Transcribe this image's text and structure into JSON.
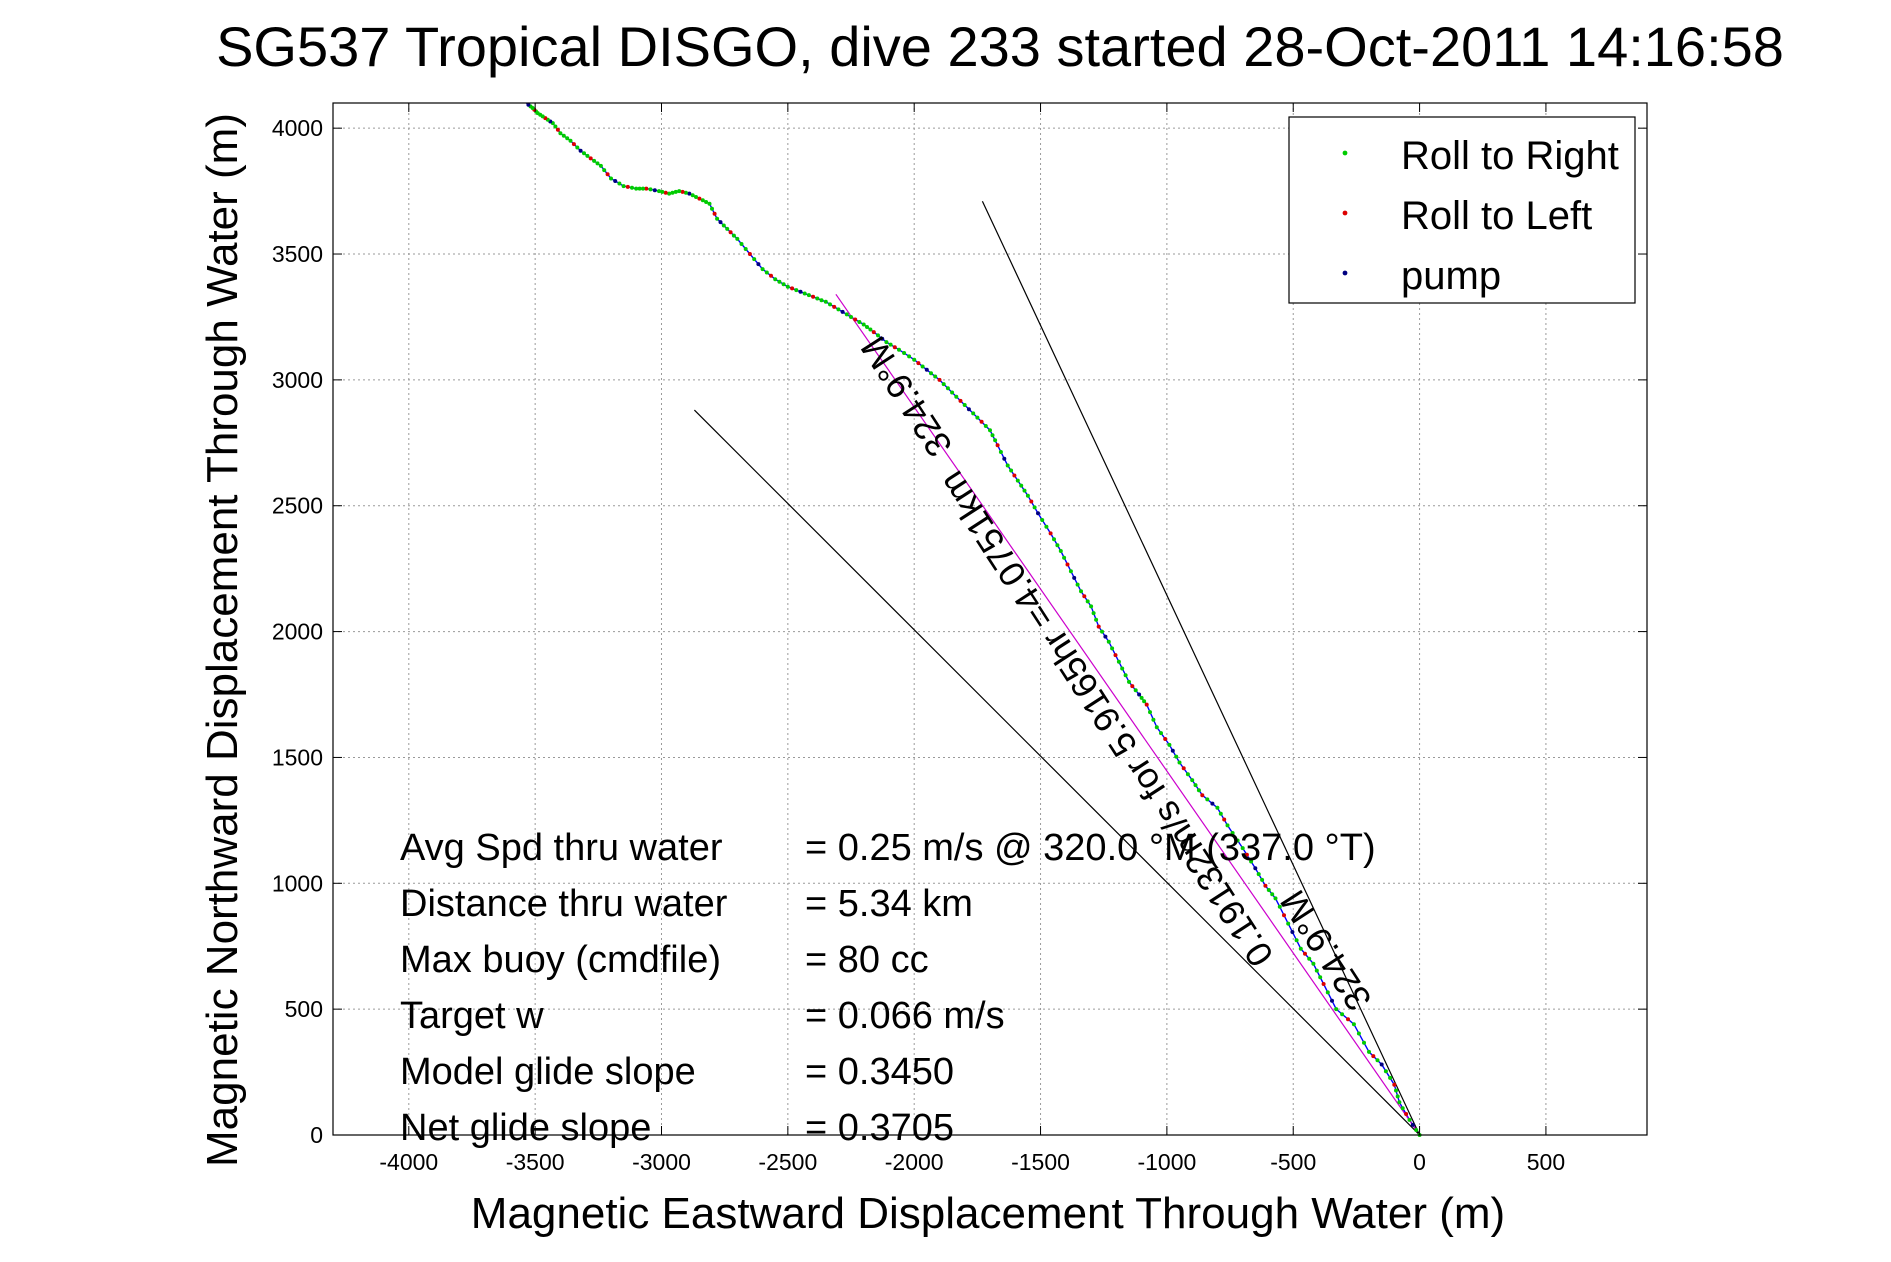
{
  "chart_data": {
    "type": "line",
    "title": "SG537 Tropical DISGO, dive 233 started 28-Oct-2011 14:16:58",
    "xlabel": "Magnetic Eastward Displacement Through Water (m)",
    "ylabel": "Magnetic Northward Displacement Through Water (m)",
    "xlim": [
      -4300,
      900
    ],
    "ylim": [
      0,
      4100
    ],
    "xticks": [
      -4000,
      -3500,
      -3000,
      -2500,
      -2000,
      -1500,
      -1000,
      -500,
      0,
      500
    ],
    "yticks": [
      0,
      500,
      1000,
      1500,
      2000,
      2500,
      3000,
      3500,
      4000
    ],
    "grid": true,
    "legend": {
      "position": "top-right",
      "entries": [
        {
          "label": "Roll to Right",
          "color": "#00cc00"
        },
        {
          "label": "Roll to Left",
          "color": "#dd0000"
        },
        {
          "label": "pump",
          "color": "#000080"
        }
      ]
    },
    "series": [
      {
        "color": "#0000ff",
        "x": [
          0,
          -40,
          -80,
          -100,
          -150,
          -200,
          -260,
          -330,
          -380,
          -420,
          -470,
          -520,
          -570,
          -610,
          -650,
          -700,
          -760,
          -800,
          -860,
          -900,
          -950,
          -990,
          -1040,
          -1080,
          -1110,
          -1150,
          -1190,
          -1230,
          -1270,
          -1300,
          -1340,
          -1380,
          -1420,
          -1460,
          -1510,
          -1550,
          -1590,
          -1630,
          -1670,
          -1700,
          -1750,
          -1800,
          -1850,
          -1900,
          -1950,
          -2000,
          -2060,
          -2110,
          -2160,
          -2200,
          -2250,
          -2300,
          -2350,
          -2400,
          -2450,
          -2500,
          -2550,
          -2600,
          -2650,
          -2700,
          -2740,
          -2780,
          -2810,
          -2850,
          -2890,
          -2930,
          -2970,
          -3010,
          -3060,
          -3100,
          -3150,
          -3200,
          -3240,
          -3280,
          -3320,
          -3360,
          -3400,
          -3430,
          -3460,
          -3490,
          -3510,
          -3535
        ],
        "y": [
          0,
          60,
          130,
          200,
          280,
          330,
          440,
          500,
          600,
          680,
          740,
          840,
          940,
          990,
          1060,
          1140,
          1230,
          1300,
          1350,
          1410,
          1480,
          1550,
          1620,
          1710,
          1750,
          1800,
          1880,
          1960,
          2020,
          2100,
          2160,
          2240,
          2320,
          2390,
          2470,
          2540,
          2600,
          2660,
          2740,
          2800,
          2850,
          2900,
          2950,
          3000,
          3040,
          3080,
          3120,
          3150,
          3190,
          3220,
          3250,
          3280,
          3310,
          3330,
          3350,
          3370,
          3400,
          3440,
          3500,
          3560,
          3600,
          3640,
          3700,
          3720,
          3740,
          3750,
          3740,
          3750,
          3760,
          3760,
          3770,
          3800,
          3850,
          3880,
          3910,
          3950,
          3980,
          4020,
          4040,
          4060,
          4080,
          4100
        ]
      },
      {
        "color": "#cc00cc",
        "x": [
          0,
          -2310
        ],
        "y": [
          0,
          3340
        ]
      },
      {
        "color": "#000000",
        "x": [
          0,
          -2870
        ],
        "y": [
          0,
          2880
        ]
      },
      {
        "color": "#000000",
        "x": [
          0,
          -1730
        ],
        "y": [
          0,
          3710
        ]
      }
    ],
    "annotations": [
      {
        "text": "324.9°M",
        "x": -1990,
        "y": 2960,
        "angle": -123
      },
      {
        "text": "0.19132m/s for 5.9165hr =4.0751km",
        "x": -1200,
        "y": 1680,
        "angle": -123
      },
      {
        "text": "324.9°M",
        "x": -330,
        "y": 760,
        "angle": -123
      }
    ],
    "stats": [
      {
        "label": "Avg Spd thru water",
        "value": "=  0.25 m/s @ 320.0 °M (337.0 °T)"
      },
      {
        "label": "Distance thru water",
        "value": "=  5.34 km"
      },
      {
        "label": "Max buoy (cmdfile)",
        "value": "= 80 cc"
      },
      {
        "label": "Target w",
        "value": "= 0.066 m/s"
      },
      {
        "label": "Model glide slope",
        "value": "= 0.3450"
      },
      {
        "label": "Net glide slope",
        "value": "= 0.3705"
      }
    ]
  }
}
